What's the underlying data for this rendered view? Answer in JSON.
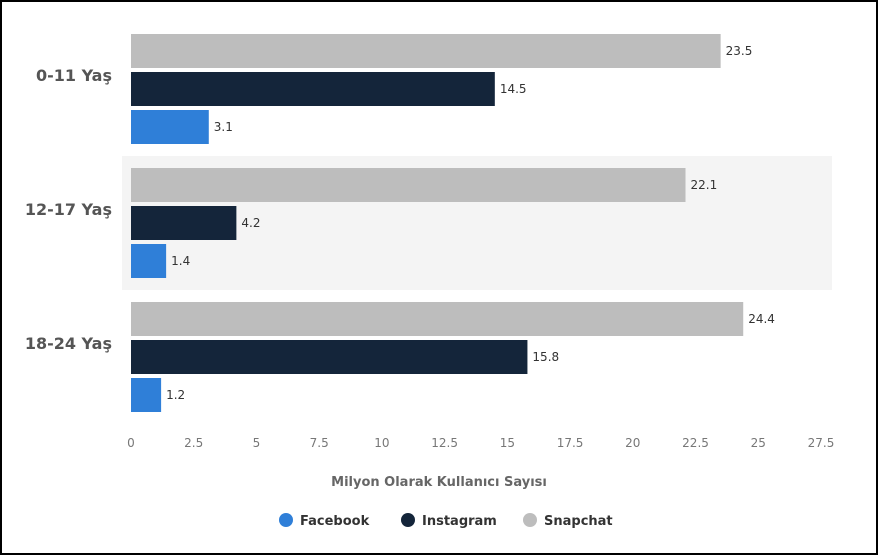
{
  "chart_data": {
    "type": "bar",
    "orientation": "horizontal",
    "categories": [
      "0-11 Yaş",
      "12-17 Yaş",
      "18-24 Yaş"
    ],
    "series": [
      {
        "name": "Snapchat",
        "color": "#bdbdbd",
        "values": [
          23.5,
          22.1,
          24.4
        ]
      },
      {
        "name": "Instagram",
        "color": "#14253a",
        "values": [
          14.5,
          4.2,
          15.8
        ]
      },
      {
        "name": "Facebook",
        "color": "#2f7fd8",
        "values": [
          3.1,
          1.4,
          1.2
        ]
      }
    ],
    "xlabel": "Milyon Olarak Kullanıcı Sayısı",
    "xlim": [
      0,
      27.5
    ],
    "xticks": [
      "0",
      "2.5",
      "5",
      "7.5",
      "10",
      "12.5",
      "15",
      "17.5",
      "20",
      "22.5",
      "25",
      "27.5"
    ],
    "legend": {
      "placement": "bottom",
      "order": [
        "Facebook",
        "Instagram",
        "Snapchat"
      ]
    },
    "grid": false,
    "alternating_band": true
  }
}
